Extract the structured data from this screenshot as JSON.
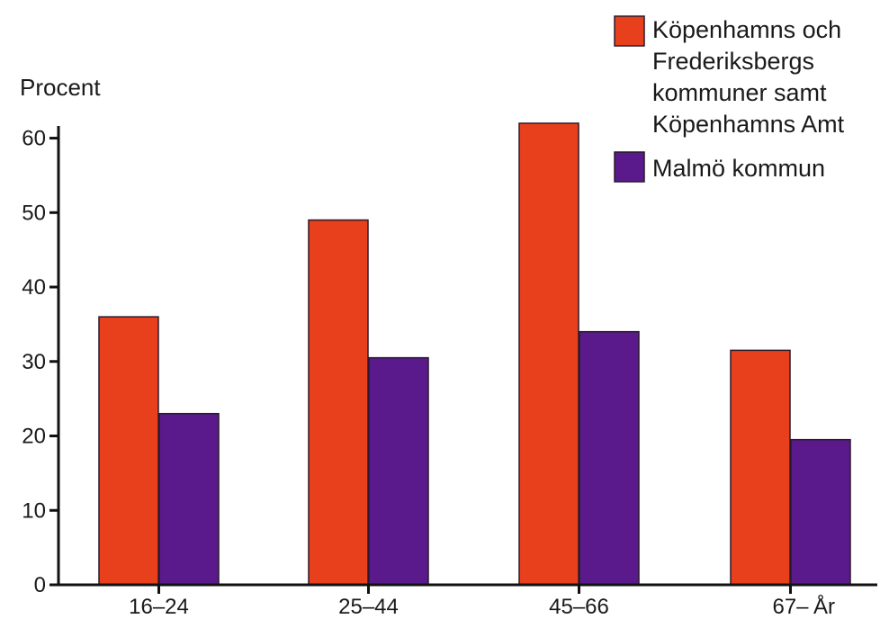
{
  "chart_data": {
    "type": "bar",
    "ylabel": "Procent",
    "xlabel": "År",
    "ylim": [
      0,
      62
    ],
    "yticks": [
      0,
      10,
      20,
      30,
      40,
      50,
      60
    ],
    "categories": [
      "16–24",
      "25–44",
      "45–66",
      "67–"
    ],
    "series": [
      {
        "name": "Köpenhamns och Frederiksbergs kommuner samt Köpenhamns Amt",
        "name_lines": [
          "Köpenhamns och",
          "Frederiksbergs",
          "kommuner samt",
          "Köpenhamns Amt"
        ],
        "color": "#e8401c",
        "values": [
          36,
          49,
          62,
          31.5
        ]
      },
      {
        "name": "Malmö kommun",
        "name_lines": [
          "Malmö kommun"
        ],
        "color": "#5a1a8c",
        "values": [
          23,
          30.5,
          34,
          19.5
        ]
      }
    ],
    "grid": false,
    "legend_position": "top-right"
  }
}
